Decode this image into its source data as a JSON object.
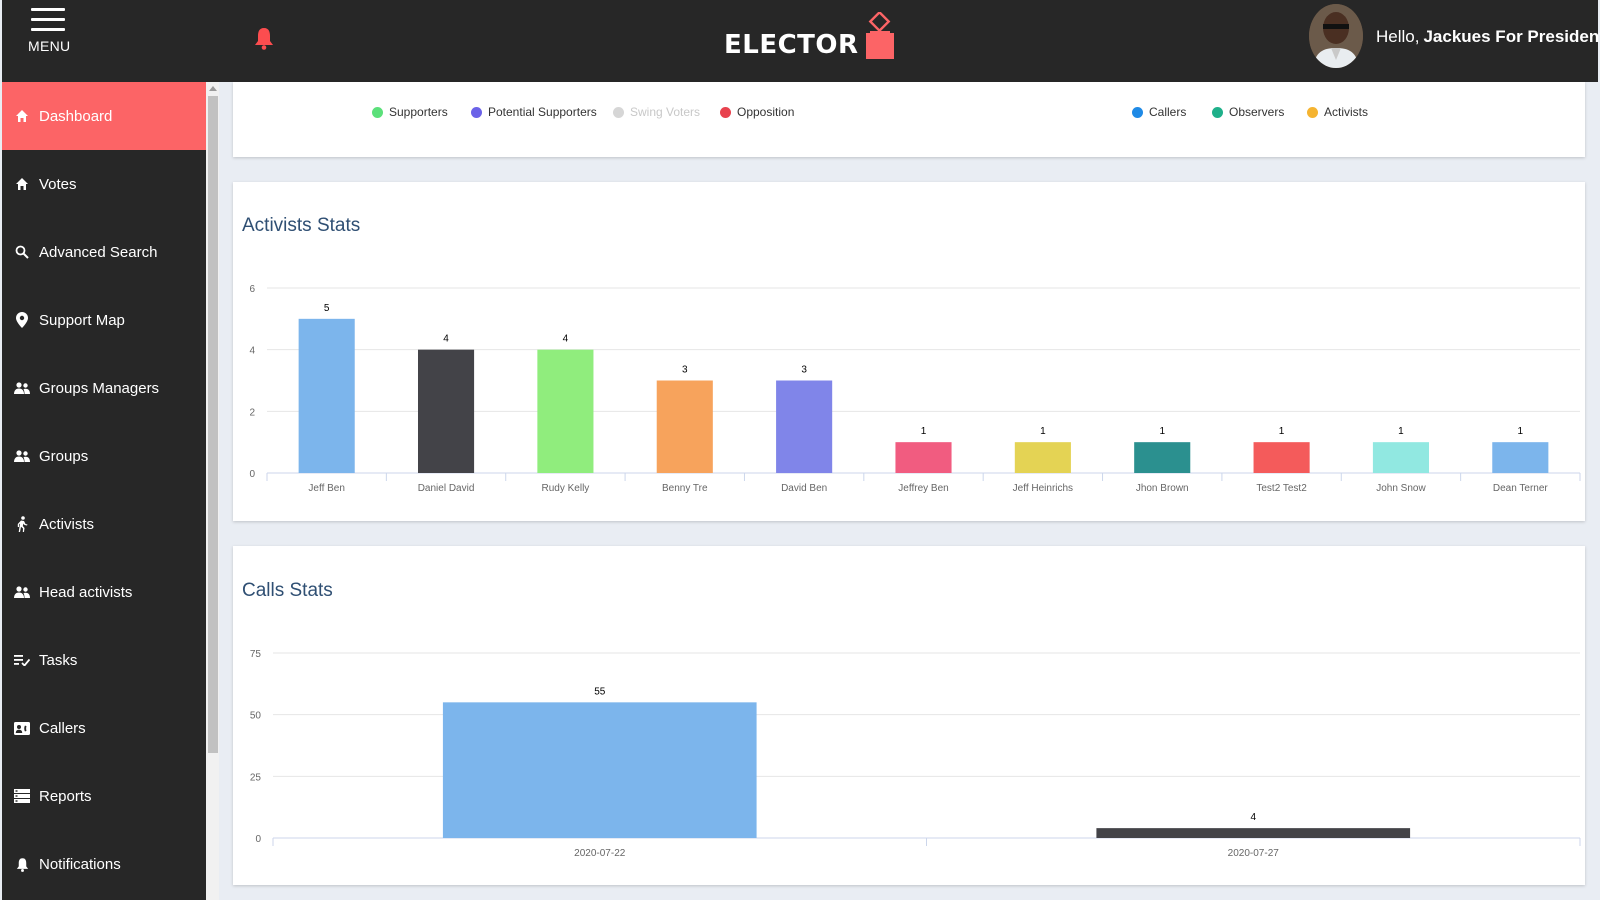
{
  "header": {
    "menu_label": "MENU",
    "logo_text": "ELECTOR",
    "greeting_prefix": "Hello,",
    "user_name": "Jackues For President!",
    "accent_color": "#fc6466",
    "bar_color": "#272727"
  },
  "sidebar": {
    "items": [
      {
        "label": "Dashboard",
        "icon": "home-icon",
        "active": true
      },
      {
        "label": "Votes",
        "icon": "home-icon"
      },
      {
        "label": "Advanced Search",
        "icon": "search-icon"
      },
      {
        "label": "Support Map",
        "icon": "map-pin-icon"
      },
      {
        "label": "Groups Managers",
        "icon": "people-icon"
      },
      {
        "label": "Groups",
        "icon": "people-icon"
      },
      {
        "label": "Activists",
        "icon": "running-person-icon"
      },
      {
        "label": "Head activists",
        "icon": "people-icon"
      },
      {
        "label": "Tasks",
        "icon": "checklist-icon"
      },
      {
        "label": "Callers",
        "icon": "contact-card-icon"
      },
      {
        "label": "Reports",
        "icon": "storage-icon"
      },
      {
        "label": "Notifications",
        "icon": "bell-icon"
      }
    ]
  },
  "legend": {
    "voters": [
      {
        "label": "Supporters",
        "color": "#5be07a"
      },
      {
        "label": "Potential Supporters",
        "color": "#6b62e8"
      },
      {
        "label": "Swing Voters",
        "color": "#d6d6d6",
        "hidden": true
      },
      {
        "label": "Opposition",
        "color": "#e8424e"
      }
    ],
    "roles": [
      {
        "label": "Callers",
        "color": "#1f8ae6"
      },
      {
        "label": "Observers",
        "color": "#1fb08a"
      },
      {
        "label": "Activists",
        "color": "#f5b431"
      }
    ]
  },
  "activists_stats": {
    "title": "Activists Stats"
  },
  "calls_stats": {
    "title": "Calls Stats"
  },
  "chart_data": [
    {
      "type": "bar",
      "title": "Activists Stats",
      "categories": [
        "Jeff Ben",
        "Daniel David",
        "Rudy Kelly",
        "Benny Tre",
        "David Ben",
        "Jeffrey Ben",
        "Jeff Heinrichs",
        "Jhon Brown",
        "Test2 Test2",
        "John Snow",
        "Dean Terner"
      ],
      "values": [
        5,
        4,
        4,
        3,
        3,
        1,
        1,
        1,
        1,
        1,
        1
      ],
      "colors": [
        "#7cb5ec",
        "#434348",
        "#90ed7d",
        "#f7a35c",
        "#8085e9",
        "#f15c80",
        "#e4d354",
        "#2b908f",
        "#f45b5b",
        "#91e8e1",
        "#7cb5ec"
      ],
      "ylim": [
        0,
        6
      ],
      "yticks": [
        0,
        2,
        4,
        6
      ],
      "grid": true,
      "data_labels": true
    },
    {
      "type": "bar",
      "title": "Calls Stats",
      "categories": [
        "2020-07-22",
        "2020-07-27"
      ],
      "values": [
        55,
        4
      ],
      "colors": [
        "#7cb5ec",
        "#434348"
      ],
      "ylim": [
        0,
        75
      ],
      "yticks": [
        0,
        25,
        50,
        75
      ],
      "grid": true,
      "data_labels": true
    }
  ]
}
